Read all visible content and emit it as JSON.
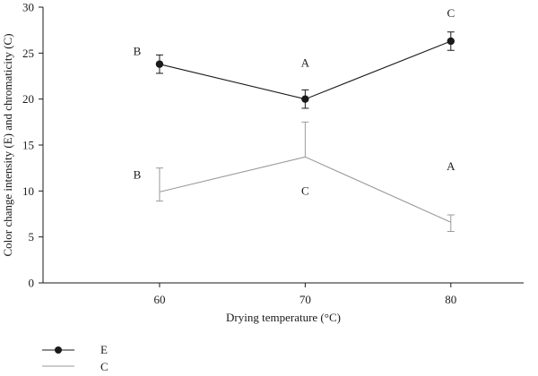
{
  "chart_data": {
    "type": "line",
    "title": "",
    "xlabel": "Drying temperature (°C)",
    "ylabel": "Color change intensity (E) and chromaticity (C)",
    "x": [
      60,
      70,
      80
    ],
    "x_tick_labels": [
      "60",
      "70",
      "80"
    ],
    "xlim": [
      52,
      85
    ],
    "ylim": [
      0,
      30
    ],
    "y_ticks": [
      0,
      5,
      10,
      15,
      20,
      25,
      30
    ],
    "y_tick_labels": [
      "0",
      "5",
      "10",
      "15",
      "20",
      "25",
      "30"
    ],
    "grid": false,
    "legend_position": "bottom-left",
    "series": [
      {
        "name": "E",
        "color": "#1a1a1a",
        "marker": "filled-circle",
        "values": [
          23.8,
          20.0,
          26.3
        ],
        "error_upper": [
          1.0,
          1.0,
          1.0
        ],
        "error_lower": [
          1.0,
          1.0,
          1.0
        ],
        "letters": [
          "B",
          "A",
          "C"
        ]
      },
      {
        "name": "C",
        "color": "#9a9a9a",
        "marker": "none",
        "values": [
          9.9,
          13.7,
          6.6
        ],
        "error_upper": [
          2.6,
          3.8,
          0.8
        ],
        "error_lower": [
          1.0,
          0,
          1.0
        ],
        "letters": [
          "B",
          "C",
          "A"
        ]
      }
    ]
  }
}
